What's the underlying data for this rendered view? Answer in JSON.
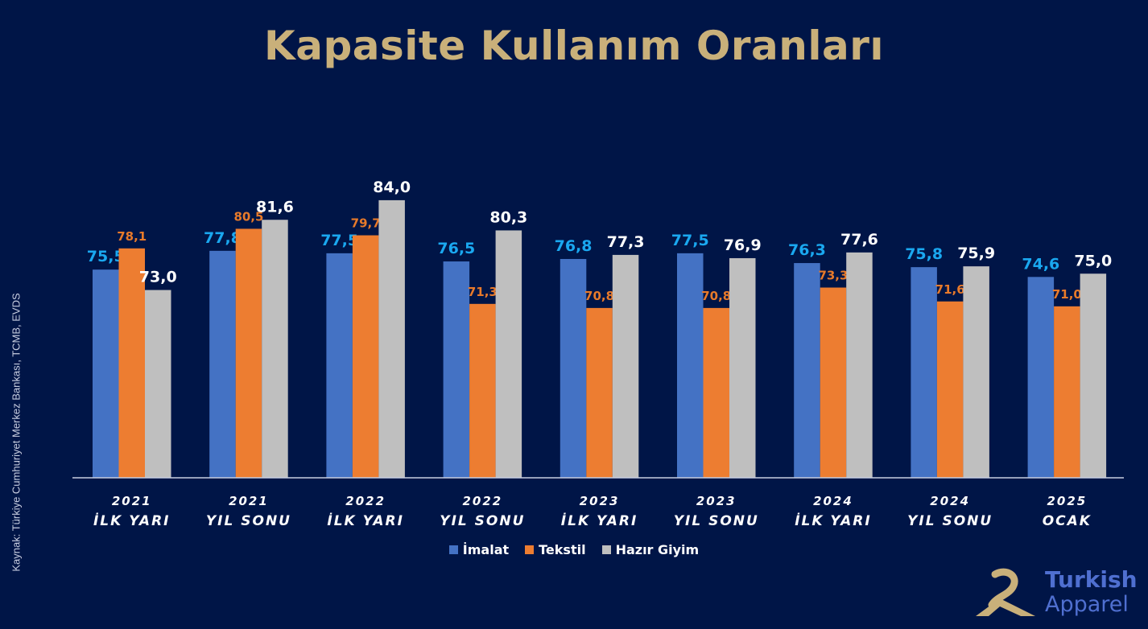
{
  "title": "Kapasite Kullanım Oranları",
  "source": "Kaynak: Türkiye Cumhuriyet Merkez Bankası, TCMB, EVDS",
  "logo": {
    "word1": "Turkish",
    "word2": "Apparel"
  },
  "colors": {
    "background": "#001547",
    "title": "#c9b07a",
    "axis": "#c8cde0"
  },
  "chart_data": {
    "type": "bar",
    "title": "Kapasite Kullanım Oranları",
    "categories": [
      [
        "2021",
        "İLK YARI"
      ],
      [
        "2021",
        "YIL SONU"
      ],
      [
        "2022",
        "İLK YARI"
      ],
      [
        "2022",
        "YIL SONU"
      ],
      [
        "2023",
        "İLK YARI"
      ],
      [
        "2023",
        "YIL SONU"
      ],
      [
        "2024",
        "İLK YARI"
      ],
      [
        "2024",
        "YIL SONU"
      ],
      [
        "2025",
        "OCAK"
      ]
    ],
    "series": [
      {
        "name": "İmalat",
        "color": "#4472c4",
        "label_color": "#1aa8f0",
        "values": [
          75.5,
          77.8,
          77.5,
          76.5,
          76.8,
          77.5,
          76.3,
          75.8,
          74.6
        ],
        "labels": [
          "75,5",
          "77,8",
          "77,5",
          "76,5",
          "76,8",
          "77,5",
          "76,3",
          "75,8",
          "74,6"
        ]
      },
      {
        "name": "Tekstil",
        "color": "#ed7d31",
        "label_color": "#e87a2a",
        "values": [
          78.1,
          80.5,
          79.7,
          71.3,
          70.8,
          70.8,
          73.3,
          71.6,
          71.0
        ],
        "labels": [
          "78,1",
          "80,5",
          "79,7",
          "71,3",
          "70,8",
          "70,8",
          "73,3",
          "71,6",
          "71,0"
        ]
      },
      {
        "name": "Hazır Giyim",
        "color": "#bfbfbf",
        "label_color": "#ffffff",
        "values": [
          73.0,
          81.6,
          84.0,
          80.3,
          77.3,
          76.9,
          77.6,
          75.9,
          75.0
        ],
        "labels": [
          "73,0",
          "81,6",
          "84,0",
          "80,3",
          "77,3",
          "76,9",
          "77,6",
          "75,9",
          "75,0"
        ]
      }
    ],
    "legend_position": "bottom",
    "grid": false,
    "ylim": [
      50,
      85
    ]
  }
}
